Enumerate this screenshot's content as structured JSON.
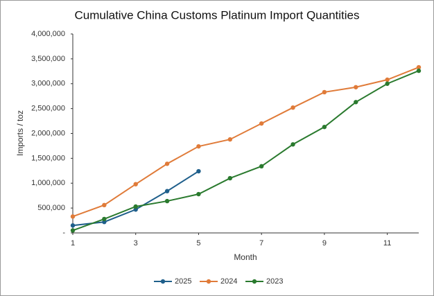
{
  "chart_data": {
    "type": "line",
    "title": "Cumulative China Customs Platinum Import Quantities",
    "xlabel": "Month",
    "ylabel": "Imports / toz",
    "x": [
      1,
      2,
      3,
      4,
      5,
      6,
      7,
      8,
      9,
      10,
      11,
      12
    ],
    "xlim": [
      1,
      12
    ],
    "xticks": [
      1,
      3,
      5,
      7,
      9,
      11
    ],
    "ylim": [
      0,
      4000000
    ],
    "yticks": [
      {
        "value": 0,
        "label": "-"
      },
      {
        "value": 500000,
        "label": "500,000"
      },
      {
        "value": 1000000,
        "label": "1,000,000"
      },
      {
        "value": 1500000,
        "label": "1,500,000"
      },
      {
        "value": 2000000,
        "label": "2,000,000"
      },
      {
        "value": 2500000,
        "label": "2,500,000"
      },
      {
        "value": 3000000,
        "label": "3,000,000"
      },
      {
        "value": 3500000,
        "label": "3,500,000"
      },
      {
        "value": 4000000,
        "label": "4,000,000"
      }
    ],
    "grid": false,
    "legend": "bottom",
    "series": [
      {
        "name": "2025",
        "color": "#1f5f8b",
        "values": [
          150000,
          220000,
          470000,
          840000,
          1240000,
          null,
          null,
          null,
          null,
          null,
          null,
          null
        ]
      },
      {
        "name": "2024",
        "color": "#e07b39",
        "values": [
          330000,
          560000,
          980000,
          1390000,
          1740000,
          1880000,
          2200000,
          2520000,
          2830000,
          2930000,
          3080000,
          3330000
        ]
      },
      {
        "name": "2023",
        "color": "#2a7a2e",
        "values": [
          50000,
          280000,
          530000,
          640000,
          780000,
          1100000,
          1340000,
          1780000,
          2130000,
          2630000,
          3000000,
          3260000
        ]
      }
    ]
  }
}
